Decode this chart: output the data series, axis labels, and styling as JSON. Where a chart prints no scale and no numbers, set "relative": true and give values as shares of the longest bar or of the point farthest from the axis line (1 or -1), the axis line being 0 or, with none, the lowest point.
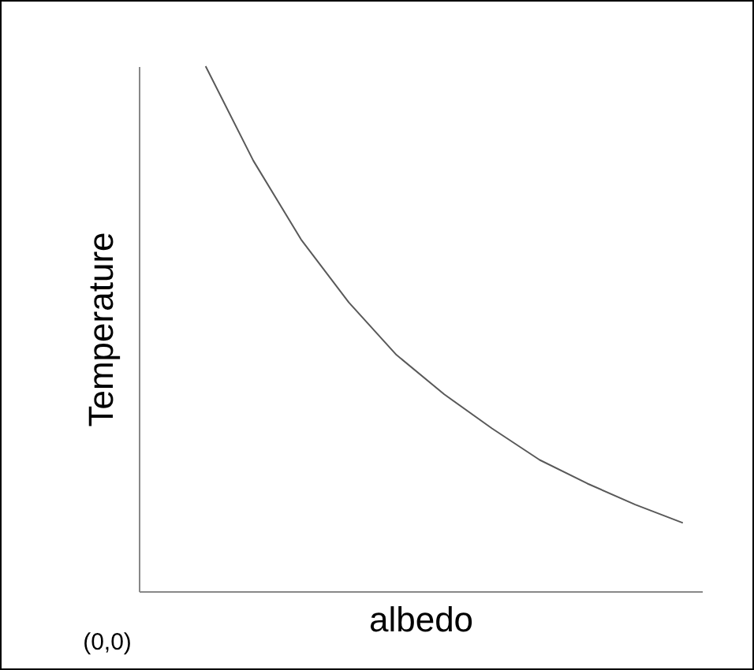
{
  "chart_data": {
    "type": "line",
    "relative": true,
    "xlabel": "albedo",
    "ylabel": "Temperature",
    "annotations": [
      "(0,0)"
    ],
    "categories": [
      null,
      null,
      null,
      null,
      null,
      null,
      null,
      null,
      null,
      null,
      null,
      null
    ],
    "series": [
      {
        "color": "#595959",
        "values": [
          null,
          1.0,
          0.82,
          0.67,
          0.55,
          0.45,
          0.375,
          0.31,
          0.25,
          0.205,
          0.165,
          0.13
        ]
      }
    ],
    "grid": false,
    "legend": false,
    "marker": "none",
    "line_style": "solid"
  }
}
